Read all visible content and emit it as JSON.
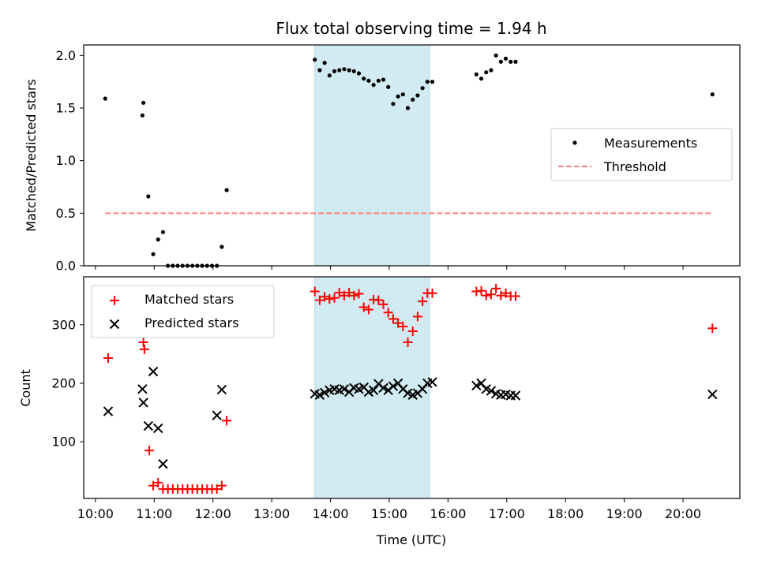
{
  "chart_data": [
    {
      "type": "scatter",
      "title": "Flux total observing time = 1.94 h",
      "ylabel": "Matched/Predicted stars",
      "xlabel": "",
      "ylim": [
        0,
        2.1
      ],
      "xlim": [
        "09:48",
        "20:58"
      ],
      "yticks": [
        "0.0",
        "0.5",
        "1.0",
        "1.5",
        "2.0"
      ],
      "highlight_span": {
        "x": [
          "13:44",
          "15:41"
        ],
        "color": "#add8e6"
      },
      "legend": {
        "placement": "center-right",
        "entries": [
          "Measurements",
          "Threshold"
        ]
      },
      "threshold": {
        "name": "Threshold",
        "y": 0.5,
        "x": [
          "10:10",
          "20:30"
        ],
        "color": "#ff7f7f",
        "style": "dashed"
      },
      "series": [
        {
          "name": "Measurements",
          "color": "#000000",
          "marker": "dot",
          "x": [
            "10:10",
            "10:48",
            "10:49",
            "10:54",
            "10:59",
            "11:04",
            "11:09",
            "11:14",
            "11:19",
            "11:24",
            "11:29",
            "11:34",
            "11:39",
            "11:44",
            "11:49",
            "11:54",
            "11:59",
            "12:04",
            "12:09",
            "12:14",
            "13:44",
            "13:49",
            "13:54",
            "13:59",
            "14:04",
            "14:09",
            "14:14",
            "14:19",
            "14:24",
            "14:29",
            "14:34",
            "14:39",
            "14:44",
            "14:49",
            "14:54",
            "14:59",
            "15:04",
            "15:09",
            "15:14",
            "15:19",
            "15:24",
            "15:29",
            "15:34",
            "15:39",
            "15:44",
            "16:29",
            "16:34",
            "16:39",
            "16:44",
            "16:49",
            "16:54",
            "16:59",
            "17:04",
            "17:09",
            "20:30"
          ],
          "y": [
            1.59,
            1.43,
            1.55,
            0.66,
            0.11,
            0.25,
            0.32,
            0.0,
            0.0,
            0.0,
            0.0,
            0.0,
            0.0,
            0.0,
            0.0,
            0.0,
            0.0,
            0.0,
            0.18,
            0.72,
            1.96,
            1.86,
            1.93,
            1.81,
            1.85,
            1.86,
            1.87,
            1.86,
            1.85,
            1.83,
            1.78,
            1.76,
            1.72,
            1.76,
            1.77,
            1.7,
            1.54,
            1.61,
            1.63,
            1.5,
            1.58,
            1.62,
            1.69,
            1.75,
            1.75,
            1.82,
            1.78,
            1.84,
            1.86,
            2.0,
            1.94,
            1.97,
            1.94,
            1.94,
            1.63
          ]
        }
      ]
    },
    {
      "type": "scatter",
      "title": "",
      "xlabel": "Time (UTC)",
      "ylabel": "Count",
      "ylim": [
        3,
        382
      ],
      "xlim": [
        "09:48",
        "20:58"
      ],
      "yticks": [
        "100",
        "200",
        "300"
      ],
      "xticks": [
        "10:00",
        "11:00",
        "12:00",
        "13:00",
        "14:00",
        "15:00",
        "16:00",
        "17:00",
        "18:00",
        "19:00",
        "20:00"
      ],
      "highlight_span": {
        "x": [
          "13:44",
          "15:41"
        ],
        "color": "#add8e6"
      },
      "legend": {
        "placement": "top-left",
        "entries": [
          "Matched stars",
          "Predicted stars"
        ]
      },
      "series": [
        {
          "name": "Matched stars",
          "color": "#ff0000",
          "marker": "plus",
          "x": [
            "10:13",
            "10:49",
            "10:50",
            "10:55",
            "10:59",
            "11:04",
            "11:09",
            "11:14",
            "11:19",
            "11:24",
            "11:29",
            "11:34",
            "11:39",
            "11:44",
            "11:49",
            "11:54",
            "11:59",
            "12:04",
            "12:09",
            "12:14",
            "13:44",
            "13:49",
            "13:54",
            "13:59",
            "14:04",
            "14:09",
            "14:14",
            "14:19",
            "14:24",
            "14:29",
            "14:34",
            "14:39",
            "14:44",
            "14:49",
            "14:54",
            "14:59",
            "15:04",
            "15:09",
            "15:14",
            "15:19",
            "15:24",
            "15:29",
            "15:34",
            "15:39",
            "15:44",
            "16:29",
            "16:34",
            "16:39",
            "16:44",
            "16:49",
            "16:54",
            "16:59",
            "17:04",
            "17:09",
            "20:30"
          ],
          "y": [
            243,
            270,
            258,
            85,
            25,
            30,
            19,
            19,
            19,
            19,
            19,
            19,
            19,
            19,
            19,
            19,
            19,
            19,
            25,
            136,
            357,
            342,
            348,
            344,
            346,
            355,
            350,
            355,
            350,
            353,
            330,
            326,
            343,
            342,
            335,
            321,
            310,
            303,
            297,
            270,
            289,
            314,
            340,
            354,
            354,
            357,
            358,
            350,
            352,
            362,
            350,
            354,
            349,
            349,
            294
          ]
        },
        {
          "name": "Predicted stars",
          "color": "#000000",
          "marker": "x",
          "x": [
            "10:13",
            "10:48",
            "10:49",
            "10:54",
            "10:59",
            "11:04",
            "11:09",
            "12:04",
            "12:09",
            "13:44",
            "13:49",
            "13:54",
            "13:59",
            "14:04",
            "14:09",
            "14:14",
            "14:19",
            "14:24",
            "14:29",
            "14:34",
            "14:39",
            "14:44",
            "14:49",
            "14:54",
            "14:59",
            "15:04",
            "15:09",
            "15:14",
            "15:19",
            "15:24",
            "15:29",
            "15:34",
            "15:39",
            "15:44",
            "16:29",
            "16:34",
            "16:39",
            "16:44",
            "16:49",
            "16:54",
            "16:59",
            "17:04",
            "17:09",
            "20:30"
          ],
          "y": [
            152,
            190,
            167,
            127,
            220,
            123,
            62,
            145,
            189,
            182,
            180,
            184,
            188,
            190,
            188,
            190,
            185,
            192,
            190,
            193,
            185,
            188,
            199,
            192,
            188,
            195,
            200,
            190,
            183,
            180,
            183,
            190,
            200,
            202,
            196,
            200,
            190,
            187,
            182,
            180,
            181,
            179,
            179,
            181
          ]
        }
      ]
    }
  ]
}
